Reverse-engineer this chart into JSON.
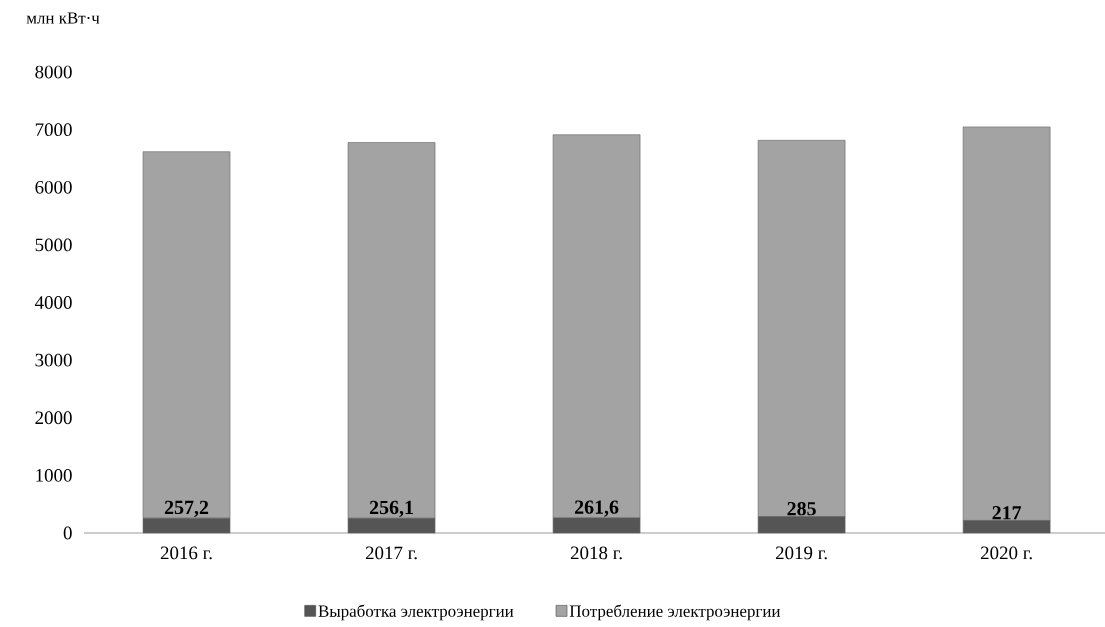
{
  "chart_data": {
    "type": "bar",
    "stacked": true,
    "ylabel": "млн кВт·ч",
    "categories": [
      "2016 г.",
      "2017 г.",
      "2018 г.",
      "2019 г.",
      "2020 г."
    ],
    "series": [
      {
        "name": "Выработка электроэнергии",
        "color": "#555555",
        "values": [
          257.2,
          256.1,
          261.6,
          285,
          217
        ],
        "value_labels": [
          "257,2",
          "256,1",
          "261,6",
          "285",
          "217"
        ]
      },
      {
        "name": "Потребление электроэнергии",
        "color": "#a3a3a3",
        "values": [
          6360,
          6520,
          6650,
          6530,
          6830
        ]
      }
    ],
    "ylim": [
      0,
      8000
    ],
    "yticks": [
      0,
      1000,
      2000,
      3000,
      4000,
      5000,
      6000,
      7000,
      8000
    ],
    "legend": "bottom"
  }
}
